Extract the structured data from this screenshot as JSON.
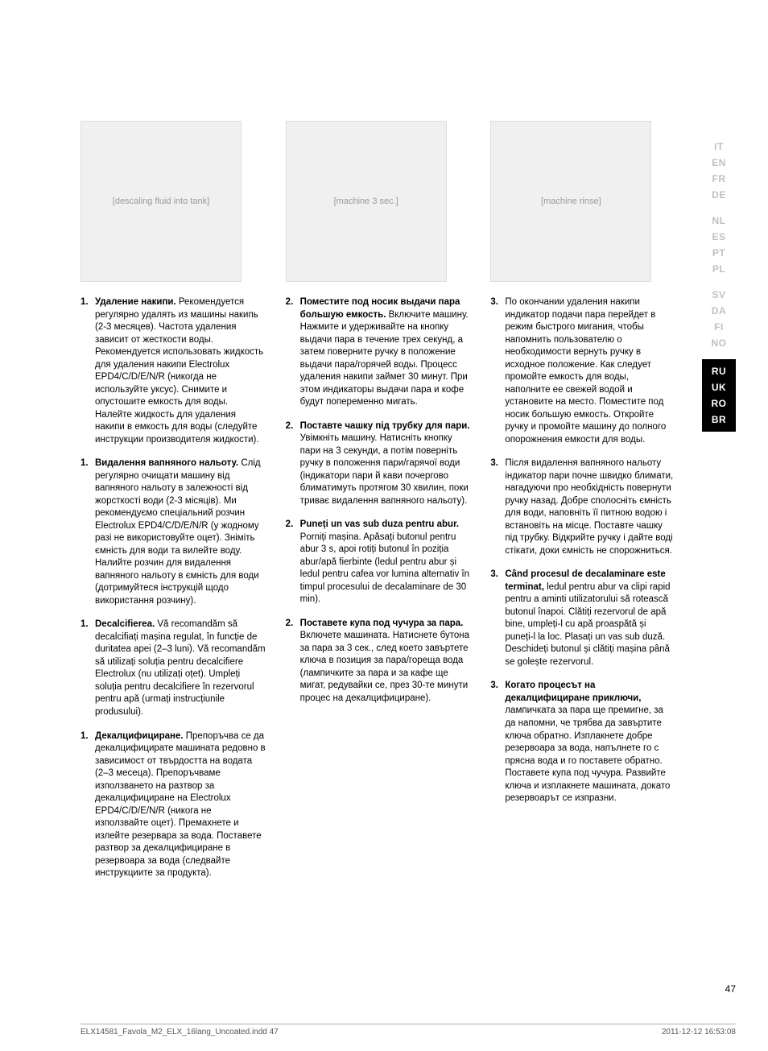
{
  "col1": {
    "image_alt": "[descaling fluid into tank]",
    "items": [
      {
        "num": "1.",
        "lead": "Удаление накипи.",
        "text": " Рекомендуется регулярно удалять из машины накипь (2-3 месяцев). Частота удаления зависит от жесткости воды. Рекомендуется использовать жидкость для удаления накипи Electrolux EPD4/C/D/E/N/R (никогда не используйте уксус). Снимите и опустошите емкость для воды. Налейте жидкость для удаления накипи в емкость для воды (следуйте инструкции производителя жидкости)."
      },
      {
        "num": "1.",
        "lead": "Видалення вапняного нальоту.",
        "text": " Слід регулярно очищати машину від вапняного нальоту в залежності від жорсткості води (2-3 місяців). Ми рекомендуємо спеціальний розчин Electrolux EPD4/C/D/E/N/R (у жодному разі не використовуйте оцет). Зніміть ємність для води та вилейте воду. Налийте розчин для видалення вапняного нальоту в ємність для води (дотримуйтеся інструкцій щодо використання розчину)."
      },
      {
        "num": "1.",
        "lead": "Decalcifierea.",
        "text": " Vă recomandăm să decalcifiați mașina regulat, în funcție de duritatea apei (2–3 luni). Vă recomandăm să utilizați soluția pentru decalcifiere Electrolux (nu utilizați oțet). Umpleți soluția pentru decalcifiere în rezervorul pentru apă (urmați instrucțiunile produsului)."
      },
      {
        "num": "1.",
        "lead": "Декалцифициране.",
        "text": " Препоръчва се да декалцифицирате машината редовно в зависимост от твърдостта на водата (2–3 месеца). Препоръчваме използването на разтвор за декалцифициране на Electrolux EPD4/C/D/E/N/R (никога не използвайте оцет). Премахнете и излейте резервара за вода. Поставете разтвор за декалцифициране в резервоара за вода (следвайте инструкциите за продукта)."
      }
    ]
  },
  "col2": {
    "image_alt": "[machine 3 sec.]",
    "items": [
      {
        "num": "2.",
        "lead": "Поместите под носик выдачи пара большую емкость.",
        "text": " Включите машину. Нажмите и удерживайте на кнопку выдачи пара в течение трех секунд, а затем поверните ручку в положение выдачи пара/горячей воды. Процесс удаления накипи займет 30 минут. При этом индикаторы выдачи пара и кофе будут попеременно мигать."
      },
      {
        "num": "2.",
        "lead": "Поставте чашку під трубку для пари.",
        "text": " Увімкніть машину. Натисніть кнопку пари на 3 секунди, а потім поверніть ручку в положення пари/гарячої води (індикатори пари й кави почергово блиматимуть протягом 30 хвилин, поки триває видалення вапняного нальоту)."
      },
      {
        "num": "2.",
        "lead": "Puneți un vas sub duza pentru abur.",
        "text": " Porniți mașina. Apăsați butonul pentru abur 3 s, apoi rotiți butonul în poziția abur/apă fierbinte (ledul pentru abur și ledul pentru cafea vor lumina alternativ în timpul procesului de decalaminare de 30 min)."
      },
      {
        "num": "2.",
        "lead": "Поставете купа под чучура за пара.",
        "text": " Включете машината. Натиснете бутона за пара за 3 сек., след което завъртете ключа в позиция за  пара/гореща вода (лампичките за пара и за кафе ще мигат, редувайки се, през 30-те минути процес на декалцифициране)."
      }
    ]
  },
  "col3": {
    "image_alt": "[machine rinse]",
    "items": [
      {
        "num": "3.",
        "lead": "",
        "text": "По окончании удаления накипи индикатор подачи пара перейдет в режим быстрого мигания, чтобы напомнить пользователю о необходимости вернуть ручку в исходное положение. Как следует промойте емкость для воды, наполните ее свежей водой и установите на место. Поместите под носик большую емкость. Откройте ручку и промойте машину до полного опорожнения емкости для воды."
      },
      {
        "num": "3.",
        "lead": "",
        "text": "Після видалення вапняного нальоту індикатор пари почне швидко блимати, нагадуючи про необхідність повернути ручку назад. Добре сполосніть ємність для води, наповніть її питною водою і встановіть на місце. Поставте чашку під трубку. Відкрийте ручку і дайте воді стікати, доки ємність не спорожниться."
      },
      {
        "num": "3.",
        "lead": "Când procesul de decalaminare este terminat,",
        "text": " ledul pentru abur va clipi rapid pentru a aminti utilizatorului să rotească butonul înapoi. Clătiți rezervorul de apă bine, umpleți-l cu apă proaspătă și puneți-l la loc. Plasați un vas sub duză. Deschideți butonul și clătiți mașina până se golește rezervorul."
      },
      {
        "num": "3.",
        "lead": "Когато процесът на декалцифициране приключи,",
        "text": " лампичката за пара ще премигне, за да напомни, че трябва да завъртите ключа обратно. Изплакнете добре резервоара за вода, напълнете го с прясна вода и го поставете обратно. Поставете купа под чучура. Развийте ключа и изплакнете машината, докато резервоарът се изпразни."
      }
    ]
  },
  "languages": {
    "group1": [
      "IT",
      "EN",
      "FR",
      "DE"
    ],
    "group2": [
      "NL",
      "ES",
      "PT",
      "PL"
    ],
    "group3": [
      "SV",
      "DA",
      "FI",
      "NO"
    ],
    "group4": [
      "RU",
      "UK",
      "RO",
      "BR"
    ]
  },
  "page_number": "47",
  "footer": {
    "left": "ELX14581_Favola_M2_ELX_16lang_Uncoated.indd   47",
    "right": "2011-12-12   16:53:08"
  }
}
